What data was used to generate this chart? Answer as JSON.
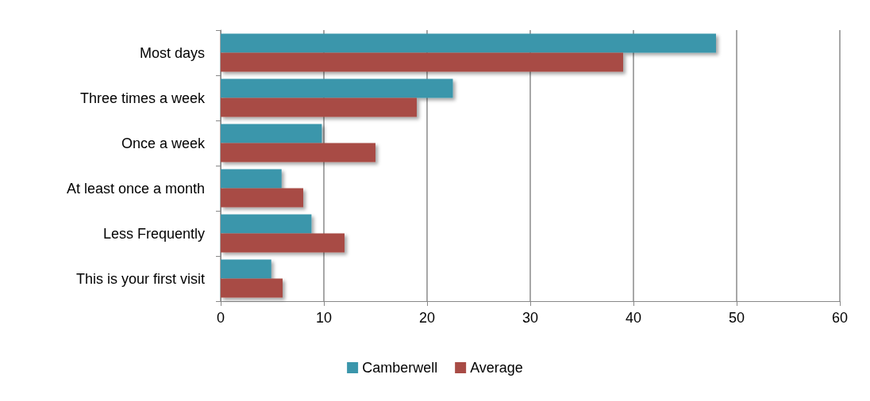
{
  "chart_data": {
    "type": "bar",
    "orientation": "horizontal",
    "categories": [
      "Most days",
      "Three times a week",
      "Once a week",
      "At least once a month",
      "Less Frequently",
      "This is your first visit"
    ],
    "series": [
      {
        "name": "Camberwell",
        "color": "#3a96ab",
        "values": [
          48,
          22.5,
          9.8,
          5.9,
          8.8,
          4.9
        ]
      },
      {
        "name": "Average",
        "color": "#a84b45",
        "values": [
          39,
          19,
          15,
          8,
          12,
          6
        ]
      }
    ],
    "xlim": [
      0,
      60
    ],
    "xticks": [
      0,
      10,
      20,
      30,
      40,
      50,
      60
    ],
    "grid": "x",
    "legend": "bottom"
  }
}
